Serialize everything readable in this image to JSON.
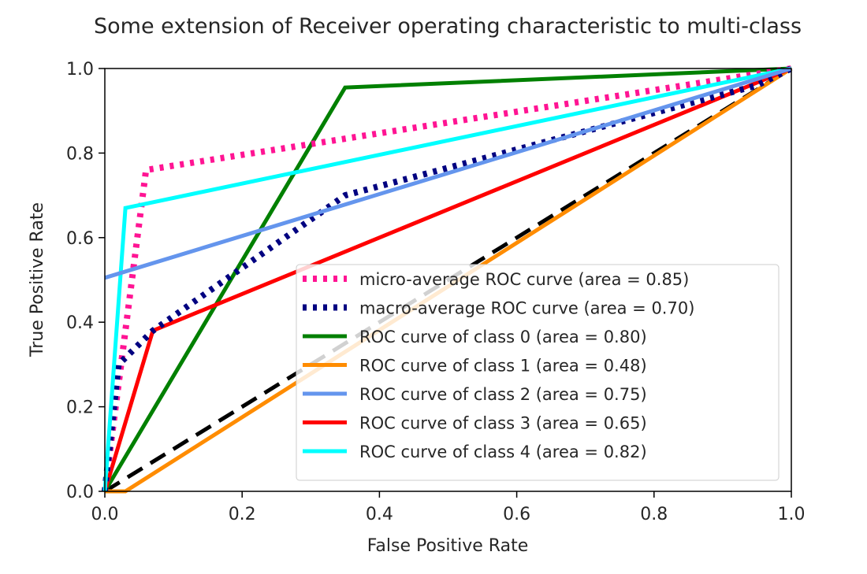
{
  "chart_data": {
    "type": "line",
    "title": "Some extension of Receiver operating characteristic to multi-class",
    "xlabel": "False Positive Rate",
    "ylabel": "True Positive Rate",
    "xlim": [
      0.0,
      1.0
    ],
    "ylim": [
      0.0,
      1.0
    ],
    "xticks": [
      "0.0",
      "0.2",
      "0.4",
      "0.6",
      "0.8",
      "1.0"
    ],
    "yticks": [
      "0.0",
      "0.2",
      "0.4",
      "0.6",
      "0.8",
      "1.0"
    ],
    "grid": false,
    "legend_position": "lower right",
    "chance_line": {
      "color": "#000000",
      "style": "dashed",
      "x": [
        0.0,
        1.0
      ],
      "y": [
        0.0,
        1.0
      ]
    },
    "series": [
      {
        "name": "micro-average ROC curve (area = 0.85)",
        "color": "#ff1493",
        "style": "dotted",
        "x": [
          0.0,
          0.06,
          1.0
        ],
        "y": [
          0.0,
          0.76,
          1.0
        ]
      },
      {
        "name": "macro-average ROC curve (area = 0.70)",
        "color": "#000080",
        "style": "dotted",
        "x": [
          0.0,
          0.02,
          0.07,
          0.35,
          0.95,
          1.0
        ],
        "y": [
          0.0,
          0.3,
          0.38,
          0.7,
          0.96,
          1.0
        ]
      },
      {
        "name": "ROC curve of class 0 (area = 0.80)",
        "color": "#008000",
        "style": "solid",
        "x": [
          0.0,
          0.35,
          1.0
        ],
        "y": [
          0.0,
          0.955,
          1.0
        ]
      },
      {
        "name": "ROC curve of class 1 (area = 0.48)",
        "color": "#ff8c00",
        "style": "solid",
        "x": [
          0.0,
          0.03,
          1.0
        ],
        "y": [
          0.0,
          0.0,
          1.0
        ]
      },
      {
        "name": "ROC curve of class 2 (area = 0.75)",
        "color": "#6495ed",
        "style": "solid",
        "x": [
          0.0,
          1.0
        ],
        "y": [
          0.505,
          1.0
        ]
      },
      {
        "name": "ROC curve of class 3 (area = 0.65)",
        "color": "#ff0000",
        "style": "solid",
        "x": [
          0.0,
          0.07,
          1.0
        ],
        "y": [
          0.0,
          0.38,
          1.0
        ]
      },
      {
        "name": "ROC curve of class 4 (area = 0.82)",
        "color": "#00ffff",
        "style": "solid",
        "x": [
          0.0,
          0.03,
          1.0
        ],
        "y": [
          0.0,
          0.67,
          1.0
        ]
      }
    ]
  }
}
